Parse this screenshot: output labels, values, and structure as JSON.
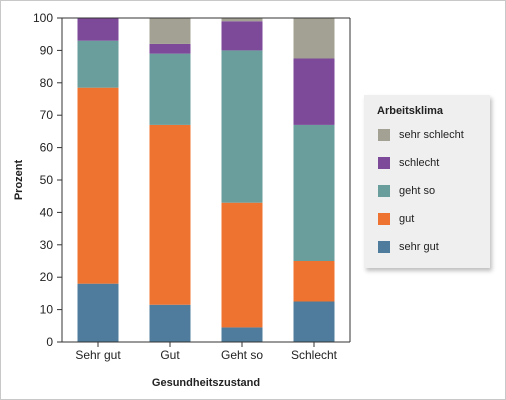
{
  "chart_data": {
    "type": "bar",
    "stacked": true,
    "categories": [
      "Sehr gut",
      "Gut",
      "Geht so",
      "Schlecht"
    ],
    "series": [
      {
        "name": "sehr gut",
        "color": "#4f7c9d",
        "values": [
          18,
          11.5,
          4.5,
          12.5
        ]
      },
      {
        "name": "gut",
        "color": "#ef7330",
        "values": [
          60.5,
          55.5,
          38.5,
          12.5
        ]
      },
      {
        "name": "geht so",
        "color": "#6a9e9d",
        "values": [
          14.5,
          22,
          47,
          42
        ]
      },
      {
        "name": "schlecht",
        "color": "#7d4a99",
        "values": [
          7,
          3,
          9,
          20.5
        ]
      },
      {
        "name": "sehr schlecht",
        "color": "#a3a193",
        "values": [
          0,
          8,
          1,
          12.5
        ]
      }
    ],
    "xlabel": "Gesundheitszustand",
    "ylabel": "Prozent",
    "ylim": [
      0,
      100
    ],
    "yticks": [
      0,
      10,
      20,
      30,
      40,
      50,
      60,
      70,
      80,
      90,
      100
    ],
    "grid": false,
    "legend": {
      "title": "Arbeitsklima",
      "position": "right",
      "order": [
        "sehr schlecht",
        "schlecht",
        "geht so",
        "gut",
        "sehr gut"
      ]
    }
  }
}
